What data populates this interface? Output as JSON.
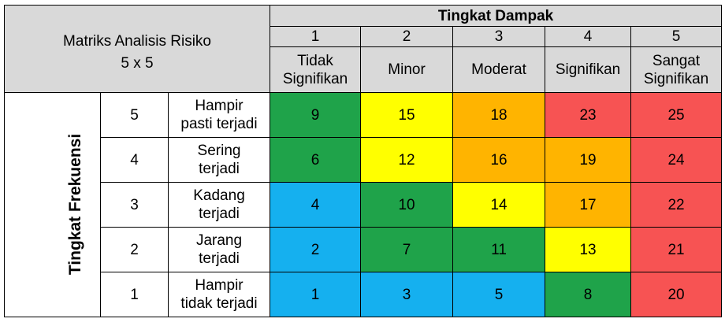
{
  "title_line1": "Matriks Analisis Risiko",
  "title_line2": "5 x 5",
  "impact_header": "Tingkat Dampak",
  "frequency_header": "Tingkat Frekuensi",
  "impact_levels": [
    {
      "num": "1",
      "line1": "Tidak",
      "line2": "Signifikan"
    },
    {
      "num": "2",
      "line1": "Minor",
      "line2": ""
    },
    {
      "num": "3",
      "line1": "Moderat",
      "line2": ""
    },
    {
      "num": "4",
      "line1": "Signifikan",
      "line2": ""
    },
    {
      "num": "5",
      "line1": "Sangat",
      "line2": "Signifikan"
    }
  ],
  "rows": [
    {
      "level": "5",
      "label1": "Hampir",
      "label2": "pasti terjadi",
      "cells": [
        {
          "value": "9",
          "color": "green"
        },
        {
          "value": "15",
          "color": "yellow"
        },
        {
          "value": "18",
          "color": "orange"
        },
        {
          "value": "23",
          "color": "red"
        },
        {
          "value": "25",
          "color": "red"
        }
      ]
    },
    {
      "level": "4",
      "label1": "Sering",
      "label2": "terjadi",
      "cells": [
        {
          "value": "6",
          "color": "green"
        },
        {
          "value": "12",
          "color": "yellow"
        },
        {
          "value": "16",
          "color": "orange"
        },
        {
          "value": "19",
          "color": "orange"
        },
        {
          "value": "24",
          "color": "red"
        }
      ]
    },
    {
      "level": "3",
      "label1": "Kadang",
      "label2": "terjadi",
      "cells": [
        {
          "value": "4",
          "color": "blue"
        },
        {
          "value": "10",
          "color": "green"
        },
        {
          "value": "14",
          "color": "yellow"
        },
        {
          "value": "17",
          "color": "orange"
        },
        {
          "value": "22",
          "color": "red"
        }
      ]
    },
    {
      "level": "2",
      "label1": "Jarang",
      "label2": "terjadi",
      "cells": [
        {
          "value": "2",
          "color": "blue"
        },
        {
          "value": "7",
          "color": "green"
        },
        {
          "value": "11",
          "color": "green"
        },
        {
          "value": "13",
          "color": "yellow"
        },
        {
          "value": "21",
          "color": "red"
        }
      ]
    },
    {
      "level": "1",
      "label1": "Hampir",
      "label2": "tidak terjadi",
      "cells": [
        {
          "value": "1",
          "color": "blue"
        },
        {
          "value": "3",
          "color": "blue"
        },
        {
          "value": "5",
          "color": "blue"
        },
        {
          "value": "8",
          "color": "green"
        },
        {
          "value": "20",
          "color": "red"
        }
      ]
    }
  ],
  "colors": {
    "green": "#1fa34a",
    "yellow": "#ffff00",
    "orange": "#ffb400",
    "red": "#f75353",
    "blue": "#15b0ef",
    "header_gray": "#d9d9d9"
  }
}
